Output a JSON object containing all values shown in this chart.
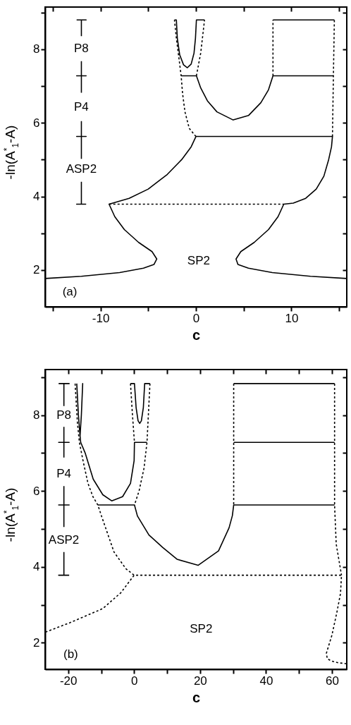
{
  "chart_data": [
    {
      "type": "line",
      "xlabel": "c",
      "ylabel": "-ln(A$^{*}$$_{1}$-A)",
      "xlim": [
        -15.8,
        15.8
      ],
      "ylim": [
        1.0,
        9.15
      ],
      "xticks": [
        {
          "value": -15,
          "label": null
        },
        -10,
        {
          "value": -5,
          "label": null
        },
        0,
        {
          "value": 5,
          "label": null
        },
        10,
        {
          "value": 15,
          "label": null
        }
      ],
      "yticks": [
        2,
        {
          "value": 3,
          "label": null
        },
        4,
        {
          "value": 5,
          "label": null
        },
        6,
        {
          "value": 7,
          "label": null
        },
        8,
        {
          "value": 9,
          "label": null
        }
      ],
      "series": [
        {
          "x": [
            -15.8,
            -12,
            -8,
            -5.5,
            -4.4,
            -4.1,
            -4.6,
            -6,
            -7.5,
            -8.5,
            -9.1,
            -7,
            -5,
            -3,
            -1.5,
            -0.5,
            0,
            14.3,
            14.2,
            13.9,
            13.4,
            12.6,
            11.5,
            10.2,
            9.2,
            8.6,
            7.6,
            6.1,
            4.7,
            4.2,
            4.4,
            5.5,
            8,
            12,
            15.8
          ],
          "values": [
            1.77,
            1.83,
            1.93,
            2.05,
            2.15,
            2.3,
            2.5,
            2.75,
            3.1,
            3.45,
            3.79,
            3.95,
            4.2,
            4.6,
            5.0,
            5.35,
            5.63,
            5.63,
            5.35,
            5.0,
            4.55,
            4.2,
            3.95,
            3.82,
            3.79,
            3.45,
            3.1,
            2.75,
            2.5,
            2.3,
            2.15,
            2.05,
            1.93,
            1.83,
            1.77
          ],
          "color": "#000000",
          "line_style": "solid"
        },
        {
          "x": [
            -9.1,
            9.2
          ],
          "values": [
            3.79,
            3.79
          ],
          "color": "#000000",
          "line_style": "dashed"
        },
        {
          "x": [
            0,
            -0.7,
            -1.15,
            -1.4,
            -1.55,
            -1.8,
            -2.05,
            -2.25
          ],
          "values": [
            5.63,
            5.85,
            6.3,
            6.8,
            7.28,
            7.8,
            8.3,
            8.8
          ],
          "color": "#000000",
          "line_style": "dashed"
        },
        {
          "x": [
            -1.55,
            0.05,
            0.5,
            1.2,
            2.2,
            3.9,
            5.5,
            6.8,
            7.6,
            8.07,
            14.4
          ],
          "values": [
            7.28,
            7.28,
            6.95,
            6.6,
            6.3,
            6.08,
            6.2,
            6.55,
            6.9,
            7.28,
            7.28
          ],
          "color": "#000000",
          "line_style": "solid"
        },
        {
          "x": [
            14.3,
            14.4,
            14.5
          ],
          "values": [
            5.63,
            7.28,
            8.8
          ],
          "color": "#000000",
          "line_style": "dashed"
        },
        {
          "x": [
            8.07,
            8.07
          ],
          "values": [
            7.28,
            8.8
          ],
          "color": "#000000",
          "line_style": "dashed"
        },
        {
          "x": [
            8.07,
            14.5
          ],
          "values": [
            8.8,
            8.8
          ],
          "color": "#000000",
          "line_style": "solid"
        },
        {
          "x": [
            -2.25,
            -2.05,
            -1.95,
            -1.7,
            -1.3,
            -0.9,
            -0.5,
            -0.2,
            -0.05,
            0.05,
            0.9
          ],
          "values": [
            8.8,
            8.8,
            8.3,
            7.85,
            7.58,
            7.5,
            7.6,
            7.9,
            8.3,
            8.8,
            8.8
          ],
          "color": "#000000",
          "line_style": "solid"
        },
        {
          "x": [
            0.05,
            0.5,
            0.9
          ],
          "values": [
            7.28,
            7.9,
            8.8
          ],
          "color": "#000000",
          "line_style": "dashed"
        },
        {
          "x": [
            -12.5,
            -11.5,
            -12,
            -12
          ],
          "values": [
            8.8,
            8.8,
            8.8,
            8.36
          ],
          "color": "#000000",
          "line_style": "solid"
        },
        {
          "x": [
            -12,
            -12,
            -12.5,
            -11.5,
            -12,
            -12
          ],
          "values": [
            7.68,
            7.28,
            7.28,
            7.28,
            7.28,
            6.82
          ],
          "color": "#000000",
          "line_style": "solid"
        },
        {
          "x": [
            -12,
            -12,
            -12.5,
            -11.5,
            -12,
            -12
          ],
          "values": [
            6.05,
            5.63,
            5.63,
            5.63,
            5.63,
            5.02
          ],
          "color": "#000000",
          "line_style": "solid"
        },
        {
          "x": [
            -12,
            -12,
            -12.5,
            -11.5
          ],
          "values": [
            4.4,
            3.79,
            3.79,
            3.79
          ],
          "color": "#000000",
          "line_style": "solid"
        }
      ],
      "annotations": [
        "P8",
        "P4",
        "ASP2",
        "SP2",
        "(a)"
      ]
    },
    {
      "type": "line",
      "xlabel": "c",
      "ylabel": "-ln(A$^{*}$$_{1}$-A)",
      "xlim": [
        -27,
        64.5
      ],
      "ylim": [
        1.3,
        9.2
      ],
      "xticks": [
        -20,
        {
          "value": -10,
          "label": null
        },
        0,
        {
          "value": 10,
          "label": null
        },
        20,
        {
          "value": 30,
          "label": null
        },
        40,
        {
          "value": 50,
          "label": null
        },
        60
      ],
      "yticks": [
        2,
        {
          "value": 3,
          "label": null
        },
        4,
        {
          "value": 5,
          "label": null
        },
        6,
        {
          "value": 7,
          "label": null
        },
        8,
        {
          "value": 9,
          "label": null
        }
      ],
      "series": [
        {
          "x": [
            -17.9,
            -17.2,
            -16.6,
            -15.5,
            -14,
            -12.5,
            -11,
            -9.9,
            -6.1,
            -2.5,
            0
          ],
          "values": [
            8.83,
            7.8,
            7.28,
            6.8,
            6.2,
            5.85,
            5.63,
            5.34,
            4.39,
            3.95,
            3.78
          ],
          "color": "#000000",
          "line_style": "dashed"
        },
        {
          "x": [
            -17.4,
            -16.9,
            -16.4,
            -16.0,
            -15.6,
            -16.0,
            -16.4,
            -16.2,
            -14.8,
            -12.4,
            -9.5,
            -6.8,
            -3.5,
            -1.1,
            0,
            0.1,
            3.9
          ],
          "values": [
            8.83,
            8.0,
            7.45,
            8.0,
            8.83,
            8.0,
            7.45,
            7.28,
            6.99,
            6.31,
            5.9,
            5.74,
            5.85,
            6.2,
            6.8,
            7.28,
            7.28
          ],
          "color": "#000000",
          "line_style": "solid"
        },
        {
          "x": [
            -11,
            0.1,
            1.0,
            4.5,
            8.7,
            13,
            19.4,
            25.6,
            28.8,
            29.8,
            30.2,
            60.8
          ],
          "values": [
            5.63,
            5.63,
            5.34,
            4.84,
            4.51,
            4.2,
            4.04,
            4.42,
            5.03,
            5.35,
            5.63,
            5.63
          ],
          "color": "#000000",
          "line_style": "solid"
        },
        {
          "x": [
            -26.9,
            -19.4,
            -9.5,
            -4,
            0,
            62.9,
            62.6,
            61.5,
            60,
            58.3,
            58.6,
            59.8,
            62,
            64.3
          ],
          "values": [
            2.28,
            2.53,
            2.9,
            3.32,
            3.78,
            3.78,
            3.3,
            2.8,
            2.2,
            1.72,
            1.58,
            1.52,
            1.47,
            1.45
          ],
          "color": "#000000",
          "line_style": "dashed"
        },
        {
          "x": [
            60.8,
            60.8,
            61.3,
            62.9
          ],
          "values": [
            8.83,
            5.63,
            4.6,
            3.78
          ],
          "color": "#000000",
          "line_style": "dashed"
        },
        {
          "x": [
            30.2,
            30.2
          ],
          "values": [
            8.83,
            5.63
          ],
          "color": "#000000",
          "line_style": "dashed"
        },
        {
          "x": [
            30.2,
            60.8
          ],
          "values": [
            7.28,
            7.28
          ],
          "color": "#000000",
          "line_style": "solid"
        },
        {
          "x": [
            30.2,
            60.8
          ],
          "values": [
            8.83,
            8.83
          ],
          "color": "#000000",
          "line_style": "solid"
        },
        {
          "x": [
            -1.1,
            -0.5,
            0.1
          ],
          "values": [
            8.83,
            8.0,
            7.28
          ],
          "color": "#000000",
          "line_style": "dashed"
        },
        {
          "x": [
            -1.1,
            0.1,
            0.6,
            1.2,
            1.7,
            2.2,
            2.8,
            3.2,
            4.8
          ],
          "values": [
            8.83,
            8.83,
            8.2,
            7.85,
            7.78,
            7.85,
            8.2,
            8.83,
            8.83
          ],
          "color": "#000000",
          "line_style": "solid"
        },
        {
          "x": [
            4.8,
            3.9,
            3.0,
            1.5,
            0.1
          ],
          "values": [
            8.83,
            7.28,
            6.6,
            6.0,
            5.63
          ],
          "color": "#000000",
          "line_style": "dashed"
        },
        {
          "x": [
            -22.9,
            -19.7,
            -21.3,
            -21.3
          ],
          "values": [
            8.83,
            8.83,
            8.83,
            8.24
          ],
          "color": "#000000",
          "line_style": "solid"
        },
        {
          "x": [
            -21.3,
            -21.3,
            -22.9,
            -19.7,
            -21.3,
            -21.3
          ],
          "values": [
            7.69,
            7.28,
            7.28,
            7.28,
            7.28,
            6.88
          ],
          "color": "#000000",
          "line_style": "solid"
        },
        {
          "x": [
            -21.3,
            -21.3,
            -22.9,
            -19.7,
            -21.3,
            -21.3
          ],
          "values": [
            6.13,
            5.63,
            5.63,
            5.63,
            5.63,
            5.05
          ],
          "color": "#000000",
          "line_style": "solid"
        },
        {
          "x": [
            -21.3,
            -21.3,
            -22.9,
            -19.7
          ],
          "values": [
            4.39,
            3.78,
            3.78,
            3.78
          ],
          "color": "#000000",
          "line_style": "solid"
        }
      ],
      "annotations": [
        "P8",
        "P4",
        "ASP2",
        "SP2",
        "(b)"
      ]
    }
  ]
}
